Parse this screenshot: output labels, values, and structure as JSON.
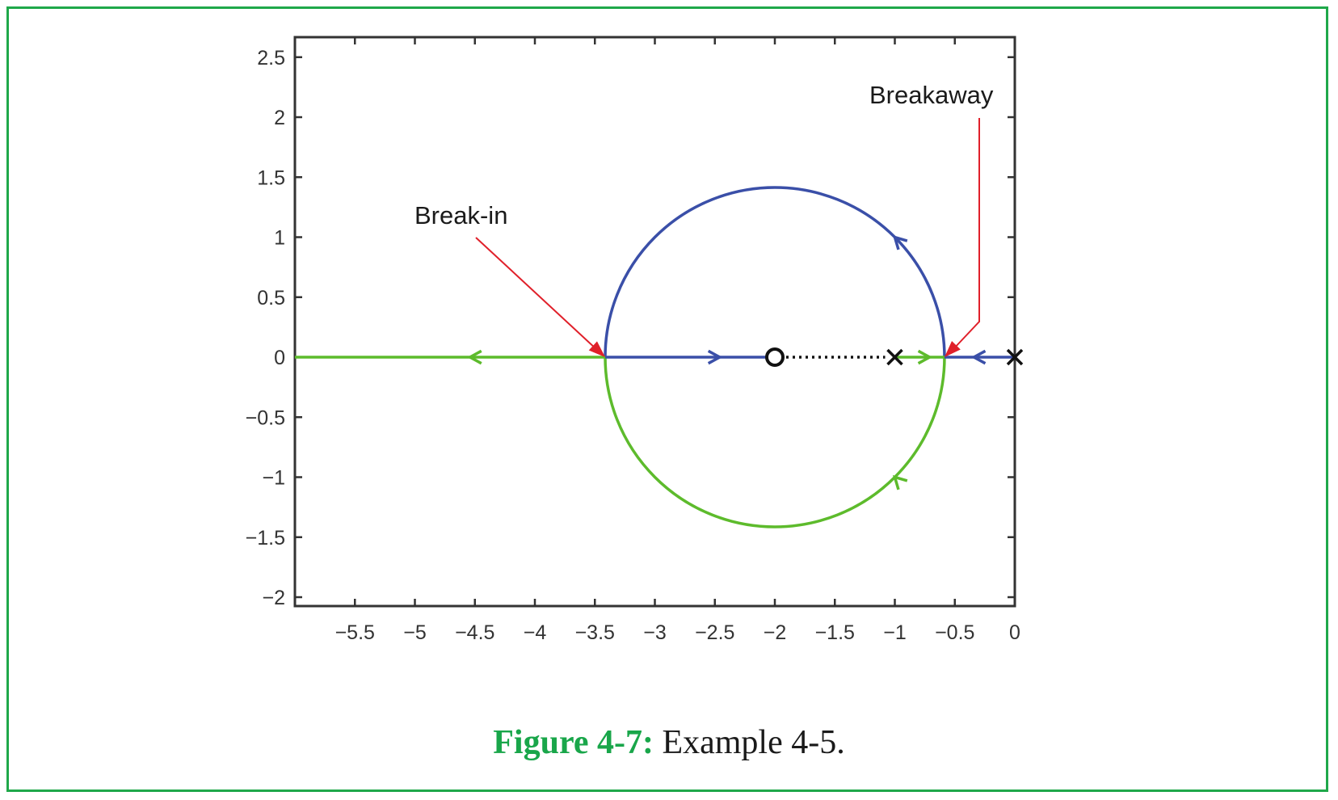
{
  "chart_data": {
    "type": "line",
    "title": "",
    "xlabel": "",
    "ylabel": "",
    "xlim": [
      -6,
      0
    ],
    "ylim": [
      -2.05,
      2.65
    ],
    "x_ticks": [
      -5.5,
      -5,
      -4.5,
      -4,
      -3.5,
      -3,
      -2.5,
      -2,
      -1.5,
      -1,
      -0.5,
      0
    ],
    "x_tick_labels": [
      "−5.5",
      "−5",
      "−4.5",
      "−4",
      "−3.5",
      "−3",
      "−2.5",
      "−2",
      "−1.5",
      "−1",
      "−0.5",
      "0"
    ],
    "y_ticks": [
      2.5,
      2,
      1.5,
      1,
      0.5,
      0,
      -0.5,
      -1,
      -1.5,
      -2
    ],
    "y_tick_labels": [
      "2.5",
      "2",
      "1.5",
      "1",
      "0.5",
      "0",
      "−0.5",
      "−1",
      "−1.5",
      "−2"
    ],
    "grid": false,
    "colors": {
      "branch_blue": "#3a4fa8",
      "branch_green": "#5dbb2c",
      "annotation_red": "#e0202a",
      "axis": "#333333"
    },
    "circle": {
      "center": [
        -2,
        0
      ],
      "radius": 1.414
    },
    "series": [
      {
        "color": "#3a4fa8",
        "segments": [
          [
            [
              0,
              0
            ],
            [
              -0.586,
              0
            ]
          ],
          [
            [
              -3.414,
              0
            ],
            [
              -2,
              0
            ]
          ]
        ],
        "arc": "upper"
      },
      {
        "color": "#5dbb2c",
        "segments": [
          [
            [
              -1,
              0
            ],
            [
              -0.586,
              0
            ]
          ],
          [
            [
              -3.414,
              0
            ],
            [
              -6,
              0
            ]
          ]
        ],
        "arc": "lower"
      }
    ],
    "direction_arrows": [
      {
        "x": -0.3,
        "y": 0,
        "dir": "left",
        "color": "#3a4fa8"
      },
      {
        "x": -2.5,
        "y": 0,
        "dir": "right",
        "color": "#3a4fa8"
      },
      {
        "x": -1.0,
        "y": 1.0,
        "dir": "upper-arc",
        "color": "#3a4fa8"
      },
      {
        "x": -0.75,
        "y": 0,
        "dir": "right",
        "color": "#5dbb2c"
      },
      {
        "x": -4.5,
        "y": 0,
        "dir": "left",
        "color": "#5dbb2c"
      },
      {
        "x": -1.0,
        "y": -1.0,
        "dir": "lower-arc",
        "color": "#5dbb2c"
      }
    ],
    "dotted_segment": [
      [
        -2,
        0
      ],
      [
        -1,
        0
      ]
    ],
    "poles": [
      [
        0,
        0
      ],
      [
        -1,
        0
      ]
    ],
    "zeros": [
      [
        -2,
        0
      ]
    ],
    "annotations": [
      {
        "text": "Break-in",
        "point": [
          -3.414,
          0
        ]
      },
      {
        "text": "Breakaway",
        "point": [
          -0.586,
          0
        ]
      }
    ]
  },
  "caption": {
    "label": "Figure 4-7:",
    "text": " Example 4-5."
  }
}
